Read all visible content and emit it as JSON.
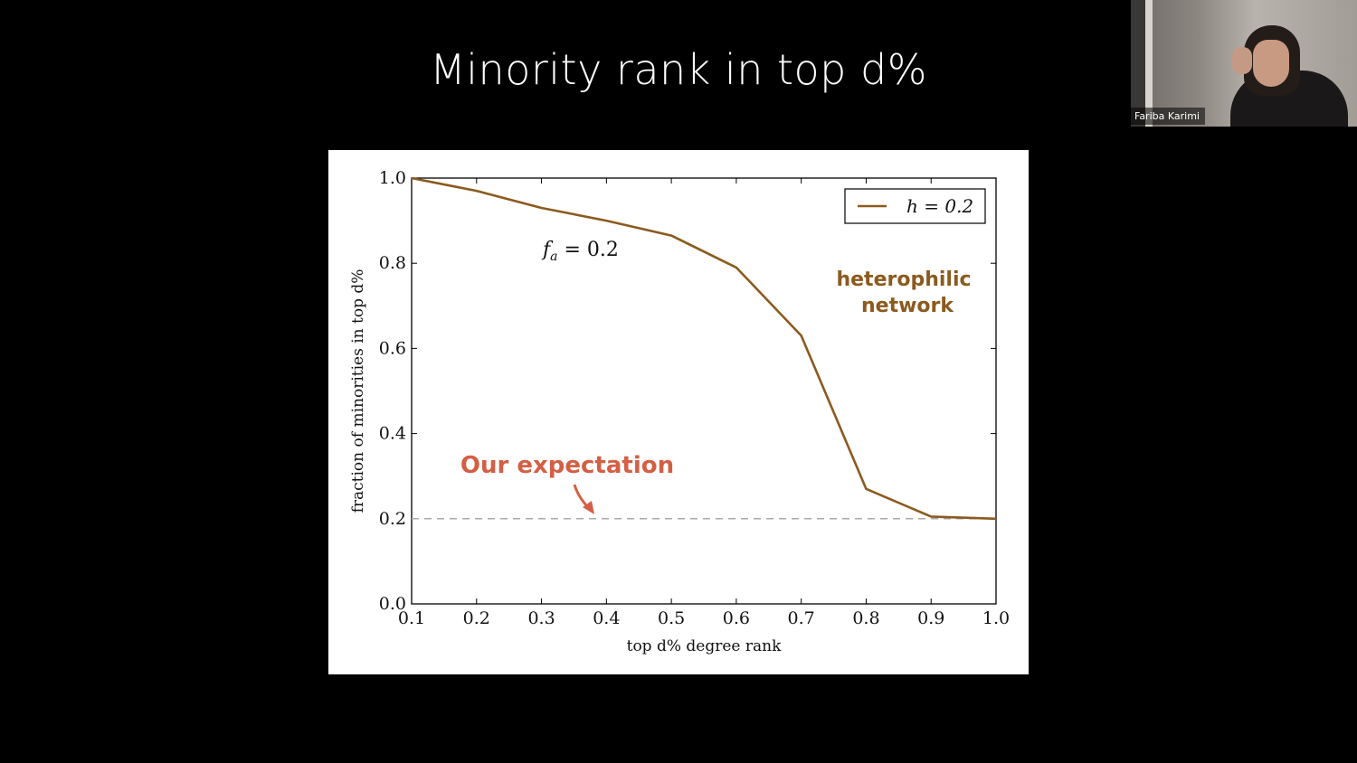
{
  "slide": {
    "title": "Minority rank in top d%"
  },
  "chart_data": {
    "type": "line",
    "title": "",
    "xlabel": "top d% degree rank",
    "ylabel": "fraction of minorities in top d%",
    "xlim": [
      0.1,
      1.0
    ],
    "ylim": [
      0.0,
      1.0
    ],
    "xticks": [
      "0.1",
      "0.2",
      "0.3",
      "0.4",
      "0.5",
      "0.6",
      "0.7",
      "0.8",
      "0.9",
      "1.0"
    ],
    "yticks": [
      "0.0",
      "0.2",
      "0.4",
      "0.6",
      "0.8",
      "1.0"
    ],
    "grid": false,
    "legend_position": "top-right",
    "series": [
      {
        "name": "h = 0.2",
        "color": "#8b5a1e",
        "x": [
          0.1,
          0.2,
          0.3,
          0.35,
          0.4,
          0.5,
          0.6,
          0.7,
          0.8,
          0.9,
          1.0
        ],
        "y": [
          1.0,
          0.97,
          0.93,
          0.915,
          0.9,
          0.865,
          0.79,
          0.63,
          0.27,
          0.205,
          0.2
        ]
      }
    ],
    "reference_line": {
      "y": 0.2,
      "style": "dashed",
      "color": "#aaaaaa"
    },
    "annotations": {
      "fa_label": "f",
      "fa_sub": "a",
      "fa_value": " = 0.2",
      "network_line1": "heterophilic",
      "network_line2": "network",
      "network_color": "#8b5a1e",
      "expectation": "Our expectation",
      "expectation_color": "#d35f45"
    }
  },
  "webcam": {
    "participant_name": "Fariba Karimi"
  }
}
